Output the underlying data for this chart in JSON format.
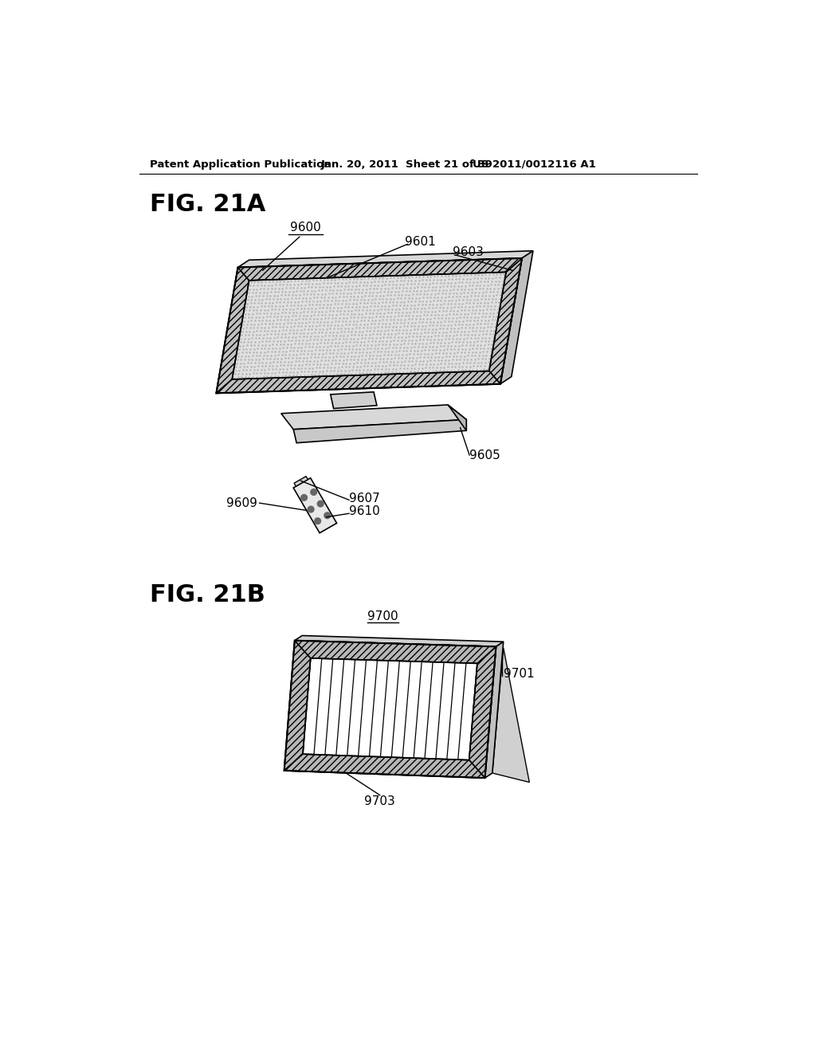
{
  "background_color": "#ffffff",
  "header_left": "Patent Application Publication",
  "header_mid": "Jan. 20, 2011  Sheet 21 of 39",
  "header_right": "US 2011/0012116 A1",
  "fig21a_label": "FIG. 21A",
  "fig21b_label": "FIG. 21B",
  "label_9600": "9600",
  "label_9601": "9601",
  "label_9603": "9603",
  "label_9605": "9605",
  "label_9607": "9607",
  "label_9609": "9609",
  "label_9610": "9610",
  "label_9700": "9700",
  "label_9701": "9701",
  "label_9703": "9703"
}
